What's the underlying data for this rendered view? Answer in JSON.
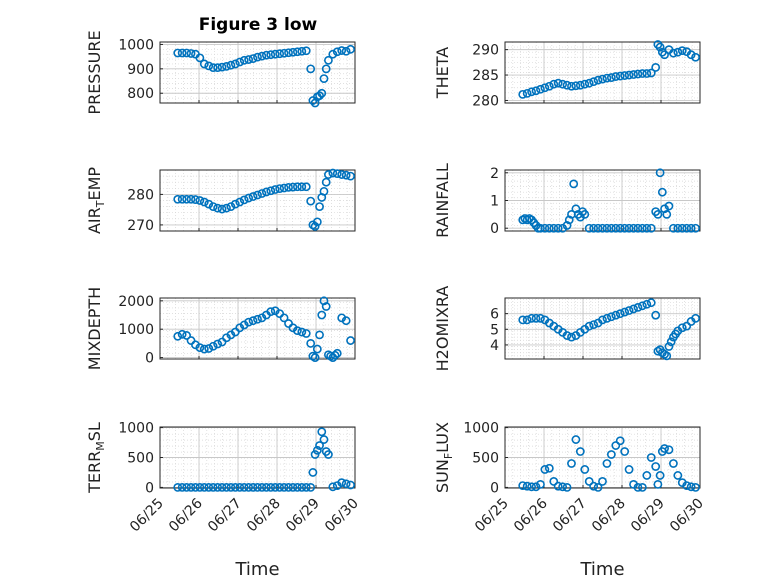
{
  "figure": {
    "title": "Figure 3 low",
    "xlabel": "Time",
    "marker_color": "#0072BD"
  },
  "chart_data": [
    {
      "type": "scatter",
      "ylabel": "PRESSURE",
      "xlim": [
        0.6,
        5.0
      ],
      "ylim": [
        760,
        1010
      ],
      "yticks": [
        800,
        900,
        1000
      ],
      "ytick_labels": [
        "800",
        "900",
        "1000"
      ],
      "x": [
        1.0,
        1.1,
        1.2,
        1.3,
        1.4,
        1.5,
        1.6,
        1.7,
        1.8,
        1.9,
        2.0,
        2.1,
        2.2,
        2.3,
        2.4,
        2.5,
        2.6,
        2.7,
        2.8,
        2.9,
        3.0,
        3.1,
        3.2,
        3.3,
        3.4,
        3.5,
        3.6,
        3.7,
        3.8,
        3.9,
        4.0,
        4.05,
        4.1,
        4.15,
        4.2,
        4.25,
        4.3,
        4.35,
        4.4,
        4.5,
        4.6,
        4.7,
        4.8,
        4.9
      ],
      "y": [
        965,
        965,
        965,
        963,
        960,
        945,
        920,
        912,
        905,
        905,
        907,
        910,
        915,
        920,
        928,
        935,
        938,
        942,
        948,
        952,
        956,
        958,
        960,
        962,
        964,
        966,
        968,
        970,
        972,
        974,
        900,
        770,
        760,
        785,
        790,
        800,
        860,
        900,
        935,
        960,
        970,
        975,
        972,
        980
      ]
    },
    {
      "type": "scatter",
      "ylabel": "THETA",
      "xlim": [
        0.6,
        5.0
      ],
      "ylim": [
        279.5,
        291.5
      ],
      "yticks": [
        280,
        285,
        290
      ],
      "ytick_labels": [
        "280",
        "285",
        "290"
      ],
      "x": [
        1.0,
        1.1,
        1.2,
        1.3,
        1.4,
        1.5,
        1.6,
        1.7,
        1.8,
        1.9,
        2.0,
        2.1,
        2.2,
        2.3,
        2.4,
        2.5,
        2.6,
        2.7,
        2.8,
        2.9,
        3.0,
        3.1,
        3.2,
        3.3,
        3.4,
        3.5,
        3.6,
        3.7,
        3.8,
        3.9,
        4.0,
        4.05,
        4.1,
        4.15,
        4.2,
        4.3,
        4.4,
        4.5,
        4.6,
        4.7,
        4.8,
        4.9
      ],
      "y": [
        281.2,
        281.4,
        281.7,
        281.9,
        282.2,
        282.5,
        282.8,
        283.2,
        283.4,
        283.2,
        283.0,
        282.8,
        282.9,
        283.0,
        283.2,
        283.4,
        283.7,
        284.0,
        284.2,
        284.4,
        284.5,
        284.7,
        284.8,
        284.9,
        285.0,
        285.1,
        285.2,
        285.3,
        285.3,
        285.4,
        286.5,
        291.0,
        290.5,
        289.5,
        289.0,
        290.0,
        289.3,
        289.5,
        289.8,
        289.6,
        289.0,
        288.5
      ]
    },
    {
      "type": "scatter",
      "ylabel": "AIR_TEMP",
      "xlim": [
        0.6,
        5.0
      ],
      "ylim": [
        268,
        288
      ],
      "yticks": [
        270,
        280
      ],
      "ytick_labels": [
        "270",
        "280"
      ],
      "x": [
        1.0,
        1.1,
        1.2,
        1.3,
        1.4,
        1.5,
        1.6,
        1.7,
        1.8,
        1.9,
        2.0,
        2.1,
        2.2,
        2.3,
        2.4,
        2.5,
        2.6,
        2.7,
        2.8,
        2.9,
        3.0,
        3.1,
        3.2,
        3.3,
        3.4,
        3.5,
        3.6,
        3.7,
        3.8,
        3.9,
        4.0,
        4.05,
        4.1,
        4.15,
        4.2,
        4.25,
        4.3,
        4.35,
        4.4,
        4.5,
        4.6,
        4.7,
        4.8,
        4.9
      ],
      "y": [
        278.4,
        278.4,
        278.4,
        278.4,
        278.3,
        278.0,
        277.5,
        276.8,
        276.0,
        275.5,
        275.2,
        275.5,
        276.0,
        276.8,
        277.5,
        278.2,
        278.8,
        279.3,
        279.8,
        280.3,
        280.8,
        281.2,
        281.6,
        281.9,
        282.1,
        282.3,
        282.4,
        282.5,
        282.5,
        282.5,
        277.8,
        270.0,
        269.5,
        271.0,
        276.0,
        279.0,
        281.0,
        284.0,
        286.5,
        287.0,
        286.8,
        286.5,
        286.3,
        286.0
      ]
    },
    {
      "type": "scatter",
      "ylabel": "RAINFALL",
      "xlim": [
        0.6,
        5.0
      ],
      "ylim": [
        -0.1,
        2.1
      ],
      "yticks": [
        0,
        1,
        2
      ],
      "ytick_labels": [
        "0",
        "1",
        "2"
      ],
      "x": [
        1.0,
        1.05,
        1.1,
        1.15,
        1.2,
        1.25,
        1.3,
        1.35,
        1.4,
        1.5,
        1.6,
        1.7,
        1.8,
        1.9,
        2.0,
        2.05,
        2.1,
        2.15,
        2.2,
        2.25,
        2.3,
        2.35,
        2.4,
        2.5,
        2.6,
        2.7,
        2.8,
        2.9,
        3.0,
        3.1,
        3.2,
        3.3,
        3.4,
        3.5,
        3.6,
        3.7,
        3.8,
        3.9,
        4.0,
        4.05,
        4.1,
        4.15,
        4.2,
        4.25,
        4.3,
        4.4,
        4.5,
        4.6,
        4.7,
        4.8,
        4.9
      ],
      "y": [
        0.3,
        0.35,
        0.3,
        0.35,
        0.3,
        0.2,
        0.1,
        0,
        0,
        0,
        0,
        0,
        0,
        0,
        0.1,
        0.3,
        0.5,
        1.6,
        0.7,
        0.5,
        0.4,
        0.6,
        0.5,
        0,
        0,
        0,
        0,
        0,
        0,
        0,
        0,
        0,
        0,
        0,
        0,
        0,
        0,
        0,
        0.6,
        0.5,
        2.0,
        1.3,
        0.7,
        0.5,
        0.8,
        0,
        0,
        0,
        0,
        0,
        0
      ]
    },
    {
      "type": "scatter",
      "ylabel": "MIXDEPTH",
      "xlim": [
        0.6,
        5.0
      ],
      "ylim": [
        -50,
        2100
      ],
      "yticks": [
        0,
        1000,
        2000
      ],
      "ytick_labels": [
        "0",
        "1000",
        "2000"
      ],
      "x": [
        1.0,
        1.1,
        1.2,
        1.3,
        1.4,
        1.5,
        1.6,
        1.7,
        1.8,
        1.9,
        2.0,
        2.1,
        2.2,
        2.3,
        2.4,
        2.5,
        2.6,
        2.7,
        2.8,
        2.9,
        3.0,
        3.1,
        3.2,
        3.3,
        3.4,
        3.5,
        3.6,
        3.7,
        3.8,
        3.9,
        4.0,
        4.05,
        4.1,
        4.15,
        4.2,
        4.25,
        4.3,
        4.35,
        4.4,
        4.45,
        4.5,
        4.55,
        4.6,
        4.7,
        4.8,
        4.9
      ],
      "y": [
        750,
        820,
        780,
        600,
        450,
        350,
        300,
        320,
        400,
        480,
        550,
        700,
        800,
        900,
        1050,
        1150,
        1250,
        1300,
        1350,
        1400,
        1500,
        1620,
        1650,
        1550,
        1400,
        1200,
        1050,
        950,
        900,
        850,
        500,
        50,
        0,
        300,
        800,
        1500,
        2000,
        1800,
        100,
        50,
        0,
        80,
        150,
        1400,
        1300,
        600
      ]
    },
    {
      "type": "scatter",
      "ylabel": "H2OMIXRA",
      "xlim": [
        0.6,
        5.0
      ],
      "ylim": [
        3.1,
        7.0
      ],
      "yticks": [
        4,
        5,
        6
      ],
      "ytick_labels": [
        "4",
        "5",
        "6"
      ],
      "x": [
        1.0,
        1.1,
        1.2,
        1.3,
        1.4,
        1.5,
        1.6,
        1.7,
        1.8,
        1.9,
        2.0,
        2.1,
        2.2,
        2.3,
        2.4,
        2.5,
        2.6,
        2.7,
        2.8,
        2.9,
        3.0,
        3.1,
        3.2,
        3.3,
        3.4,
        3.5,
        3.6,
        3.7,
        3.8,
        3.9,
        4.0,
        4.05,
        4.1,
        4.15,
        4.2,
        4.25,
        4.3,
        4.35,
        4.4,
        4.45,
        4.5,
        4.6,
        4.7,
        4.8,
        4.9
      ],
      "y": [
        5.6,
        5.6,
        5.7,
        5.7,
        5.7,
        5.6,
        5.4,
        5.2,
        5.0,
        4.8,
        4.6,
        4.5,
        4.6,
        4.8,
        5.0,
        5.2,
        5.3,
        5.4,
        5.6,
        5.7,
        5.8,
        5.9,
        6.0,
        6.1,
        6.2,
        6.3,
        6.4,
        6.5,
        6.6,
        6.7,
        5.9,
        3.6,
        3.7,
        3.5,
        3.4,
        3.3,
        3.9,
        4.2,
        4.5,
        4.7,
        4.9,
        5.1,
        5.2,
        5.5,
        5.7
      ]
    },
    {
      "type": "scatter",
      "ylabel": "TERR_MSL",
      "xlim": [
        0.6,
        5.0
      ],
      "ylim": [
        -10,
        1010
      ],
      "yticks": [
        0,
        500,
        1000
      ],
      "ytick_labels": [
        "0",
        "500",
        "1000"
      ],
      "x": [
        1.0,
        1.1,
        1.2,
        1.3,
        1.4,
        1.5,
        1.6,
        1.7,
        1.8,
        1.9,
        2.0,
        2.1,
        2.2,
        2.3,
        2.4,
        2.5,
        2.6,
        2.7,
        2.8,
        2.9,
        3.0,
        3.1,
        3.2,
        3.3,
        3.4,
        3.5,
        3.6,
        3.7,
        3.8,
        3.9,
        4.0,
        4.05,
        4.1,
        4.15,
        4.2,
        4.25,
        4.3,
        4.35,
        4.4,
        4.5,
        4.6,
        4.7,
        4.8,
        4.9
      ],
      "y": [
        0,
        0,
        0,
        0,
        0,
        0,
        0,
        0,
        0,
        0,
        0,
        0,
        0,
        0,
        0,
        0,
        0,
        0,
        0,
        0,
        0,
        0,
        0,
        0,
        0,
        0,
        0,
        0,
        0,
        0,
        0,
        250,
        550,
        620,
        700,
        930,
        800,
        600,
        550,
        10,
        30,
        80,
        60,
        40
      ]
    },
    {
      "type": "scatter",
      "ylabel": "SUN_FLUX",
      "xlim": [
        0.6,
        5.0
      ],
      "ylim": [
        -10,
        1010
      ],
      "yticks": [
        0,
        500,
        1000
      ],
      "ytick_labels": [
        "0",
        "500",
        "1000"
      ],
      "x": [
        1.0,
        1.1,
        1.2,
        1.3,
        1.4,
        1.5,
        1.6,
        1.7,
        1.8,
        1.9,
        2.0,
        2.1,
        2.2,
        2.3,
        2.4,
        2.5,
        2.6,
        2.7,
        2.8,
        2.9,
        3.0,
        3.1,
        3.2,
        3.3,
        3.4,
        3.5,
        3.6,
        3.7,
        3.8,
        3.9,
        4.0,
        4.05,
        4.1,
        4.15,
        4.2,
        4.3,
        4.4,
        4.5,
        4.6,
        4.7,
        4.8,
        4.9
      ],
      "y": [
        30,
        20,
        10,
        10,
        50,
        300,
        320,
        100,
        20,
        10,
        0,
        400,
        800,
        600,
        300,
        100,
        20,
        0,
        100,
        400,
        550,
        700,
        780,
        600,
        300,
        50,
        0,
        0,
        200,
        500,
        350,
        50,
        200,
        600,
        650,
        630,
        400,
        200,
        80,
        30,
        10,
        0
      ]
    }
  ],
  "xtick_labels": [
    "06/25",
    "06/26",
    "06/27",
    "06/28",
    "06/29",
    "06/30"
  ],
  "xticks": [
    0.6,
    1.48,
    2.36,
    3.24,
    4.12,
    5.0
  ]
}
